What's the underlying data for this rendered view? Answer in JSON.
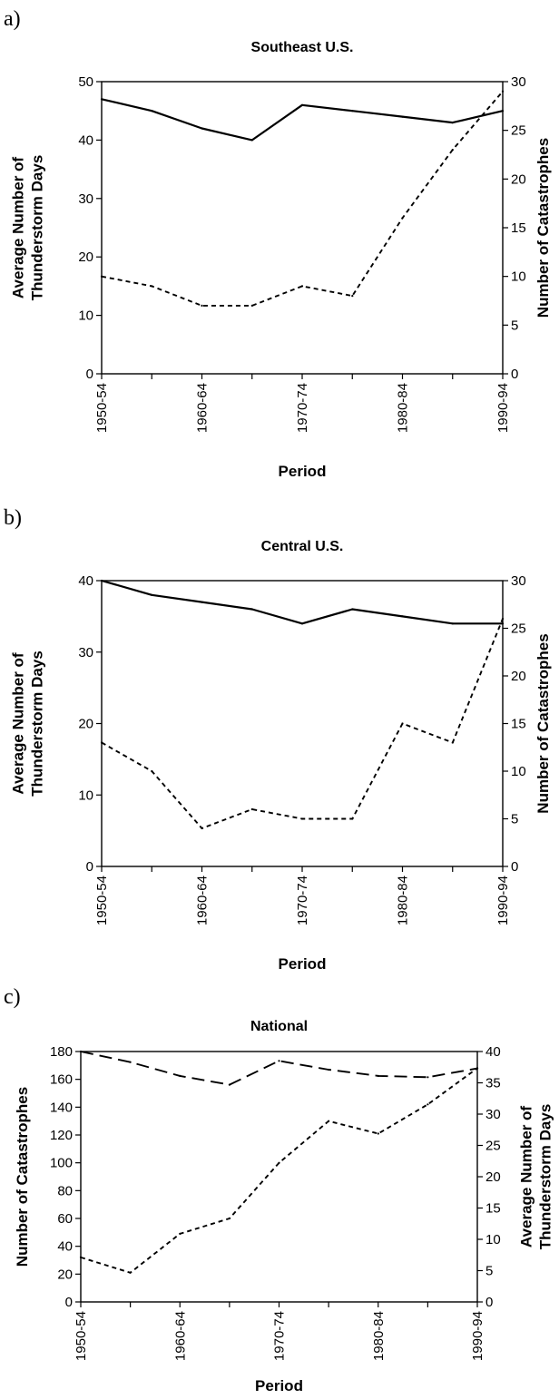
{
  "chart_data": [
    {
      "type": "line",
      "panel": "a)",
      "title": "Southeast U.S.",
      "xlabel": "Period",
      "x_tick_labels": [
        "1950-54",
        "1960-64",
        "1970-74",
        "1980-84",
        "1990-94"
      ],
      "y_left": {
        "label_lines": [
          "Average Number of",
          "Thunderstorm Days"
        ],
        "lim": [
          0,
          50
        ],
        "ticks": [
          0,
          10,
          20,
          30,
          40,
          50
        ]
      },
      "y_right": {
        "label_lines": [
          "Number of Catastrophes"
        ],
        "lim": [
          0,
          30
        ],
        "ticks": [
          0,
          5,
          10,
          15,
          20,
          25,
          30
        ]
      },
      "grid": false,
      "series": [
        {
          "axis": "left",
          "style": "solid",
          "x": [
            0,
            0.5,
            1,
            1.5,
            2,
            2.5,
            3,
            3.5,
            4
          ],
          "values": [
            47,
            45,
            42,
            40,
            46,
            45,
            44,
            43,
            45
          ]
        },
        {
          "axis": "right",
          "style": "dotted",
          "x": [
            0,
            0.5,
            1,
            1.5,
            2,
            2.5,
            3,
            3.5,
            4
          ],
          "values": [
            10,
            9,
            7,
            7,
            9,
            8,
            16,
            23,
            29
          ]
        }
      ]
    },
    {
      "type": "line",
      "panel": "b)",
      "title": "Central U.S.",
      "xlabel": "Period",
      "x_tick_labels": [
        "1950-54",
        "1960-64",
        "1970-74",
        "1980-84",
        "1990-94"
      ],
      "y_left": {
        "label_lines": [
          "Average Number of",
          "Thunderstorm Days"
        ],
        "lim": [
          0,
          40
        ],
        "ticks": [
          0,
          10,
          20,
          30,
          40
        ]
      },
      "y_right": {
        "label_lines": [
          "Number of Catastrophes"
        ],
        "lim": [
          0,
          30
        ],
        "ticks": [
          0,
          5,
          10,
          15,
          20,
          25,
          30
        ]
      },
      "grid": false,
      "series": [
        {
          "axis": "left",
          "style": "solid",
          "x": [
            0,
            0.5,
            1,
            1.5,
            2,
            2.5,
            3,
            3.5,
            4
          ],
          "values": [
            40,
            38,
            37,
            36,
            34,
            36,
            35,
            34,
            34
          ]
        },
        {
          "axis": "right",
          "style": "dotted",
          "x": [
            0,
            0.5,
            1,
            1.5,
            2,
            2.5,
            3,
            3.5,
            4
          ],
          "values": [
            13,
            10,
            4,
            6,
            5,
            5,
            15,
            13,
            26
          ]
        }
      ]
    },
    {
      "type": "line",
      "panel": "c)",
      "title": "National",
      "xlabel": "Period",
      "x_tick_labels": [
        "1950-54",
        "1960-64",
        "1970-74",
        "1980-84",
        "1990-94"
      ],
      "y_left": {
        "label_lines": [
          "Number of Catastrophes"
        ],
        "lim": [
          0,
          180
        ],
        "ticks": [
          0,
          20,
          40,
          60,
          80,
          100,
          120,
          140,
          160,
          180
        ]
      },
      "y_right": {
        "label_lines": [
          "Average Number of",
          "Thunderstorm Days"
        ],
        "lim": [
          0,
          40
        ],
        "ticks": [
          0,
          5,
          10,
          15,
          20,
          25,
          30,
          35,
          40
        ]
      },
      "grid": false,
      "series": [
        {
          "axis": "right",
          "style": "dashed",
          "x": [
            0,
            0.5,
            1,
            1.5,
            2,
            2.5,
            3,
            3.5,
            4
          ],
          "values": [
            40,
            38.3,
            36.1,
            34.7,
            38.5,
            37.1,
            36.1,
            35.9,
            37.3
          ]
        },
        {
          "axis": "left",
          "style": "dotted",
          "x": [
            0,
            0.5,
            1,
            1.5,
            2,
            2.5,
            3,
            3.5,
            4
          ],
          "values": [
            32,
            21,
            49,
            60,
            100,
            130,
            121,
            142,
            168
          ]
        }
      ]
    }
  ]
}
